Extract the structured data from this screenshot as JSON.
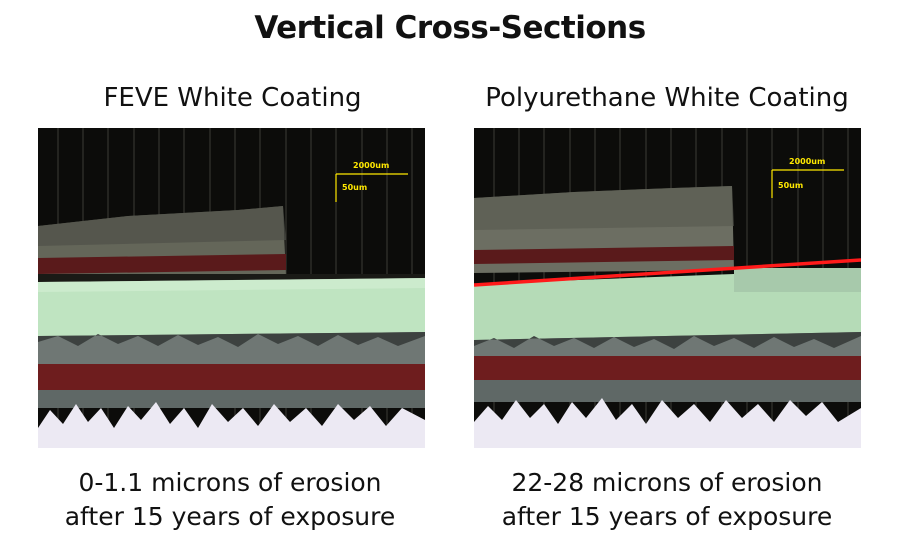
{
  "title": "Vertical Cross-Sections",
  "panels": [
    {
      "heading": "FEVE White Coating",
      "scale": {
        "horizontal": "2000um",
        "vertical": "50um"
      },
      "caption": [
        "0-1.1 microns of erosion",
        "after 15 years of exposure"
      ]
    },
    {
      "heading": "Polyurethane White Coating",
      "scale": {
        "horizontal": "2000um",
        "vertical": "50um"
      },
      "caption": [
        "22-28 microns of erosion",
        "after 15 years of exposure"
      ]
    }
  ],
  "colors": {
    "background": "#0c0c0a",
    "topcoat": "#6a6c5f",
    "red_primer": "#6e1d1e",
    "green_layer": "#bfe4c1",
    "gray_layer": "#6f7774",
    "substrate": "#ece9f3",
    "erosion_line": "#ff1a1a",
    "scale_bar": "#ffe800"
  }
}
